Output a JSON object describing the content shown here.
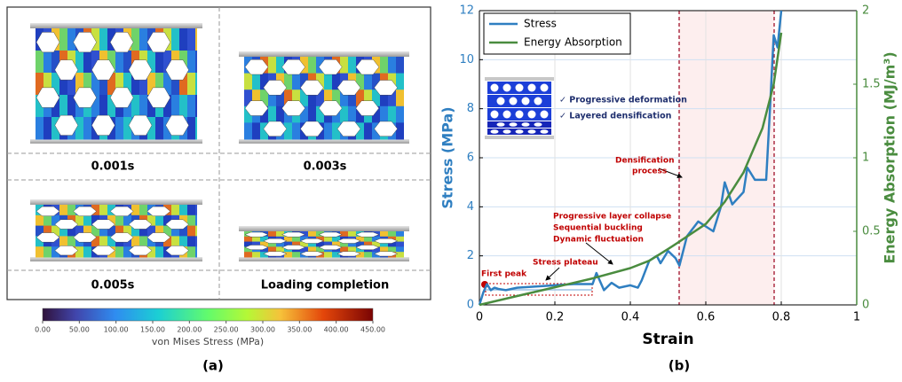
{
  "panel_a": {
    "label": "(a)",
    "captions": [
      "0.001s",
      "0.003s",
      "0.005s",
      "Loading completion"
    ],
    "colorbar": {
      "title": "von Mises Stress (MPa)",
      "ticks": [
        {
          "value": 0,
          "label": "0.00"
        },
        {
          "value": 50,
          "label": "50.00"
        },
        {
          "value": 100,
          "label": "100.00"
        },
        {
          "value": 150,
          "label": "150.00"
        },
        {
          "value": 200,
          "label": "200.00"
        },
        {
          "value": 250,
          "label": "250.00"
        },
        {
          "value": 300,
          "label": "300.00"
        },
        {
          "value": 350,
          "label": "350.00"
        },
        {
          "value": 400,
          "label": "400.00"
        },
        {
          "value": 450,
          "label": "450.00"
        }
      ]
    }
  },
  "chart_data": {
    "type": "line",
    "panel_label": "(b)",
    "xlabel": "Strain",
    "ylabel": "Stress (MPa)",
    "y2label": "Energy Absorption (MJ/m³)",
    "xlim": [
      0,
      1
    ],
    "xticks": [
      0,
      0.2,
      0.4,
      0.6,
      0.8,
      1
    ],
    "ylim": [
      0,
      12
    ],
    "yticks": [
      0,
      2,
      4,
      6,
      8,
      10,
      12
    ],
    "y2lim": [
      0,
      2
    ],
    "y2ticks": [
      0,
      0.5,
      1,
      1.5,
      2
    ],
    "grid": true,
    "legend": "upper left",
    "series": [
      {
        "name": "Stress",
        "color": "#2f7fc1",
        "x": [
          0,
          0.01,
          0.02,
          0.03,
          0.04,
          0.05,
          0.07,
          0.1,
          0.15,
          0.2,
          0.25,
          0.3,
          0.31,
          0.33,
          0.35,
          0.37,
          0.4,
          0.42,
          0.43,
          0.45,
          0.47,
          0.48,
          0.5,
          0.52,
          0.53,
          0.55,
          0.58,
          0.6,
          0.62,
          0.64,
          0.65,
          0.67,
          0.7,
          0.71,
          0.73,
          0.76,
          0.77,
          0.78,
          0.79,
          0.8
        ],
        "values": [
          0,
          0.5,
          0.85,
          0.6,
          0.7,
          0.65,
          0.6,
          0.7,
          0.75,
          0.8,
          0.85,
          0.85,
          1.3,
          0.6,
          0.9,
          0.7,
          0.8,
          0.7,
          1.0,
          1.8,
          2.0,
          1.7,
          2.2,
          1.9,
          1.6,
          2.8,
          3.4,
          3.2,
          3.0,
          4.0,
          5.0,
          4.1,
          4.6,
          5.6,
          5.1,
          5.1,
          8.0,
          11.0,
          10.5,
          12.0
        ]
      },
      {
        "name": "Energy Absorption",
        "color": "#4a8c3f",
        "axis": "y2",
        "x": [
          0,
          0.1,
          0.2,
          0.3,
          0.4,
          0.45,
          0.5,
          0.53,
          0.6,
          0.65,
          0.7,
          0.75,
          0.78,
          0.8
        ],
        "values": [
          0,
          0.06,
          0.12,
          0.18,
          0.25,
          0.3,
          0.38,
          0.43,
          0.55,
          0.7,
          0.9,
          1.2,
          1.5,
          1.85
        ]
      }
    ],
    "annotations": [
      "First peak",
      "Stress plateau",
      "Progressive layer collapse",
      "Sequential buckling",
      "Dynamic fluctuation",
      "Densification",
      "process"
    ],
    "inset_labels": [
      "✓ Progressive deformation",
      "✓ Layered densification"
    ]
  }
}
